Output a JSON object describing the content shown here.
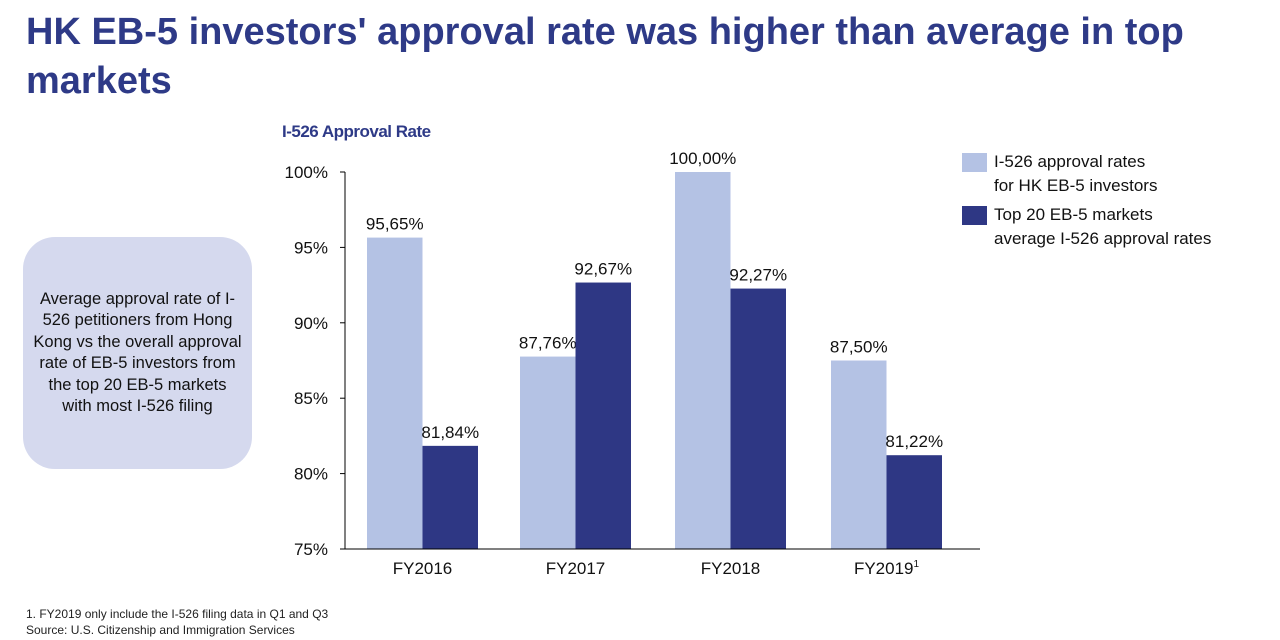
{
  "header": {
    "title": "HK EB-5 investors' approval rate was higher than average in top markets"
  },
  "callout": {
    "text": "Average approval rate of I-526 petitioners from Hong Kong vs the overall approval rate of EB-5 investors from the top 20 EB-5 markets with most I-526 filing"
  },
  "chart_data": {
    "type": "bar",
    "title": "I-526 Approval Rate",
    "xlabel": "",
    "ylabel": "",
    "categories": [
      "FY2016",
      "FY2017",
      "FY2018",
      "FY2019"
    ],
    "category_superscripts": [
      "",
      "",
      "",
      "1"
    ],
    "ylim": [
      75,
      100
    ],
    "yticks": [
      75,
      80,
      85,
      90,
      95,
      100
    ],
    "ytick_labels": [
      "75%",
      "80%",
      "85%",
      "90%",
      "95%",
      "100%"
    ],
    "grid": false,
    "legend_position": "right",
    "series": [
      {
        "name": "I-526 approval rates for HK EB-5 investors",
        "legend_lines": [
          "I-526 approval rates",
          "for HK EB-5 investors"
        ],
        "color": "#b4c2e4",
        "values": [
          95.65,
          87.76,
          100.0,
          87.5
        ],
        "labels": [
          "95,65%",
          "87,76%",
          "100,00%",
          "87,50%"
        ]
      },
      {
        "name": "Top 20 EB-5 markets average I-526 approval rates",
        "legend_lines": [
          "Top 20 EB-5 markets",
          "average I-526 approval rates"
        ],
        "color": "#2e3784",
        "values": [
          81.84,
          92.67,
          92.27,
          81.22
        ],
        "labels": [
          "81,84%",
          "92,67%",
          "92,27%",
          "81,22%"
        ]
      }
    ]
  },
  "footnotes": {
    "note1": "1. FY2019 only include the I-526 filing data in Q1 and Q3",
    "source": "Source: U.S. Citizenship and Immigration Services"
  }
}
